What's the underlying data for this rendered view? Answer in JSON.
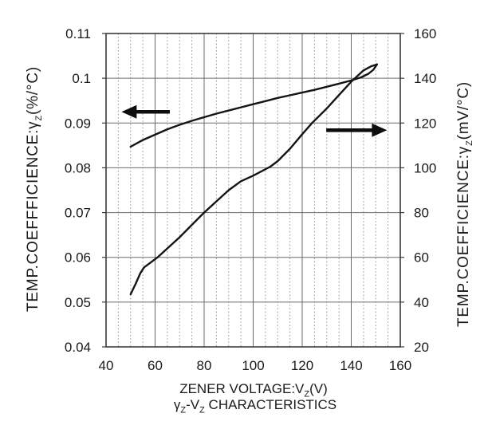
{
  "chart_data": {
    "type": "line",
    "title": "γZ-VZ CHARACTERISTICS",
    "xlabel": "ZENER VOLTAGE:VZ(V)",
    "ylabel_left": "TEMP.COEFFFICIENCE:γZ(%/°C)",
    "ylabel_right": "TEMP.COEFFICIENCE:γZ(mV/°C)",
    "grid": {
      "major": true,
      "minor_vertical_dotted": true
    },
    "x_axis": {
      "min": 40,
      "max": 160,
      "major_step": 20,
      "minor_step": 5,
      "tick_values": [
        40,
        60,
        80,
        100,
        120,
        140,
        160
      ],
      "tick_labels": [
        "40",
        "60",
        "80",
        "100",
        "120",
        "140",
        "160"
      ]
    },
    "y_axis_left": {
      "min": 0.04,
      "max": 0.11,
      "major_step": 0.01,
      "tick_values": [
        0.11,
        0.1,
        0.09,
        0.08,
        0.07,
        0.06,
        0.05,
        0.04
      ],
      "tick_labels": [
        "0.11",
        "0.1",
        "0.09",
        "0.08",
        "0.07",
        "0.06",
        "0.05",
        "0.04"
      ]
    },
    "y_axis_right": {
      "min": 20,
      "max": 160,
      "major_step": 20,
      "tick_values": [
        160,
        140,
        120,
        100,
        80,
        60,
        40,
        20
      ],
      "tick_labels": [
        "160",
        "140",
        "120",
        "100",
        "80",
        "60",
        "40",
        "20"
      ]
    },
    "series": [
      {
        "name": "temp-coefficient-percent",
        "axis": "left",
        "points": [
          [
            50,
            0.0847
          ],
          [
            55,
            0.0862
          ],
          [
            60,
            0.0874
          ],
          [
            65,
            0.0886
          ],
          [
            70,
            0.0896
          ],
          [
            75,
            0.0905
          ],
          [
            80,
            0.0913
          ],
          [
            85,
            0.0921
          ],
          [
            90,
            0.0928
          ],
          [
            95,
            0.0935
          ],
          [
            100,
            0.0942
          ],
          [
            105,
            0.0949
          ],
          [
            110,
            0.0956
          ],
          [
            115,
            0.0962
          ],
          [
            120,
            0.0968
          ],
          [
            125,
            0.0974
          ],
          [
            130,
            0.0981
          ],
          [
            135,
            0.0988
          ],
          [
            140,
            0.0995
          ],
          [
            144,
            0.1002
          ],
          [
            147,
            0.101
          ],
          [
            149,
            0.1019
          ],
          [
            150.5,
            0.1031
          ]
        ]
      },
      {
        "name": "temp-coefficient-mv",
        "axis": "right",
        "points": [
          [
            50,
            43.5
          ],
          [
            52,
            48
          ],
          [
            54,
            53
          ],
          [
            55.5,
            55.5
          ],
          [
            58,
            57.5
          ],
          [
            61,
            60
          ],
          [
            65,
            64
          ],
          [
            70,
            69
          ],
          [
            75,
            74.5
          ],
          [
            80,
            80
          ],
          [
            85,
            85
          ],
          [
            90,
            90
          ],
          [
            95,
            94
          ],
          [
            100,
            96.5
          ],
          [
            107,
            100.5
          ],
          [
            110,
            103
          ],
          [
            115,
            108.5
          ],
          [
            120,
            115
          ],
          [
            124,
            120
          ],
          [
            130,
            126.5
          ],
          [
            135,
            132.5
          ],
          [
            140,
            138.5
          ],
          [
            145,
            143.5
          ],
          [
            148,
            145.3
          ],
          [
            150.5,
            146.2
          ]
        ]
      }
    ],
    "annotations": {
      "left_axis_arrow": {
        "direction": "left",
        "x_tail": 66.0,
        "x_tip": 46.3,
        "y_left": 0.0925
      },
      "right_axis_arrow": {
        "direction": "right",
        "x_tail": 129.8,
        "x_tip": 154.6,
        "y_left": 0.0884
      }
    },
    "xlabel_parts": [
      {
        "t": "ZENER VOLTAGE:V"
      },
      {
        "t": "Z",
        "sub": true
      },
      {
        "t": "(V)"
      }
    ],
    "title_parts": [
      {
        "t": "γ"
      },
      {
        "t": "Z",
        "sub": true
      },
      {
        "t": "-V"
      },
      {
        "t": "Z",
        "sub": true
      },
      {
        "t": " CHARACTERISTICS"
      }
    ],
    "ylabel_left_parts": [
      {
        "t": "TEMP.COEFFFICIENCE:γ"
      },
      {
        "t": "Z",
        "sub": true
      },
      {
        "t": "(%/°C)"
      }
    ],
    "ylabel_right_parts": [
      {
        "t": "TEMP.COEFFICIENCE:γ"
      },
      {
        "t": "Z",
        "sub": true
      },
      {
        "t": "(mV/°C)"
      }
    ]
  },
  "colors": {
    "background": "#ffffff",
    "text": "#1a1a1a",
    "frame": "#3a3a3a",
    "grid_major": "#6b6b6b",
    "grid_minor": "#979797",
    "curve": "#141414",
    "arrow": "#0d0d0d"
  }
}
